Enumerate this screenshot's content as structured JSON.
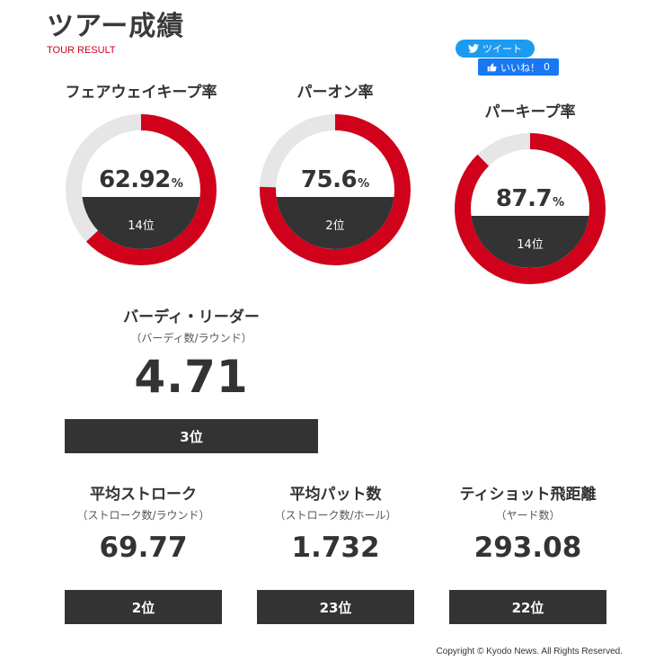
{
  "header": {
    "title": "ツアー成績",
    "subtitle": "TOUR RESULT"
  },
  "social": {
    "tweet_label": "ツイート",
    "like_label": "いいね！",
    "like_count": "0"
  },
  "colors": {
    "accent": "#d0021b",
    "track": "#e6e6e6",
    "rank_bg": "#333333",
    "tweet": "#1d9bf0",
    "like": "#1877f2"
  },
  "donut_stats": [
    {
      "title": "フェアウェイキープ率",
      "value": "62.92",
      "unit": "%",
      "percent": 62.92,
      "rank": "14位"
    },
    {
      "title": "パーオン率",
      "value": "75.6",
      "unit": "%",
      "percent": 75.6,
      "rank": "2位"
    },
    {
      "title": "パーキープ率",
      "value": "87.7",
      "unit": "%",
      "percent": 87.7,
      "rank": "14位"
    }
  ],
  "birdie": {
    "title": "バーディ・リーダー",
    "note": "（バーディ数/ラウンド）",
    "value": "4.71",
    "rank": "3位"
  },
  "stats": [
    {
      "title": "平均ストローク",
      "note": "（ストローク数/ラウンド）",
      "value": "69.77",
      "rank": "2位"
    },
    {
      "title": "平均パット数",
      "note": "（ストローク数/ホール）",
      "value": "1.732",
      "rank": "23位"
    },
    {
      "title": "ティショット飛距離",
      "note": "（ヤード数）",
      "value": "293.08",
      "rank": "22位"
    }
  ],
  "footer": {
    "copyright": "Copyright © Kyodo News. All Rights Reserved."
  }
}
